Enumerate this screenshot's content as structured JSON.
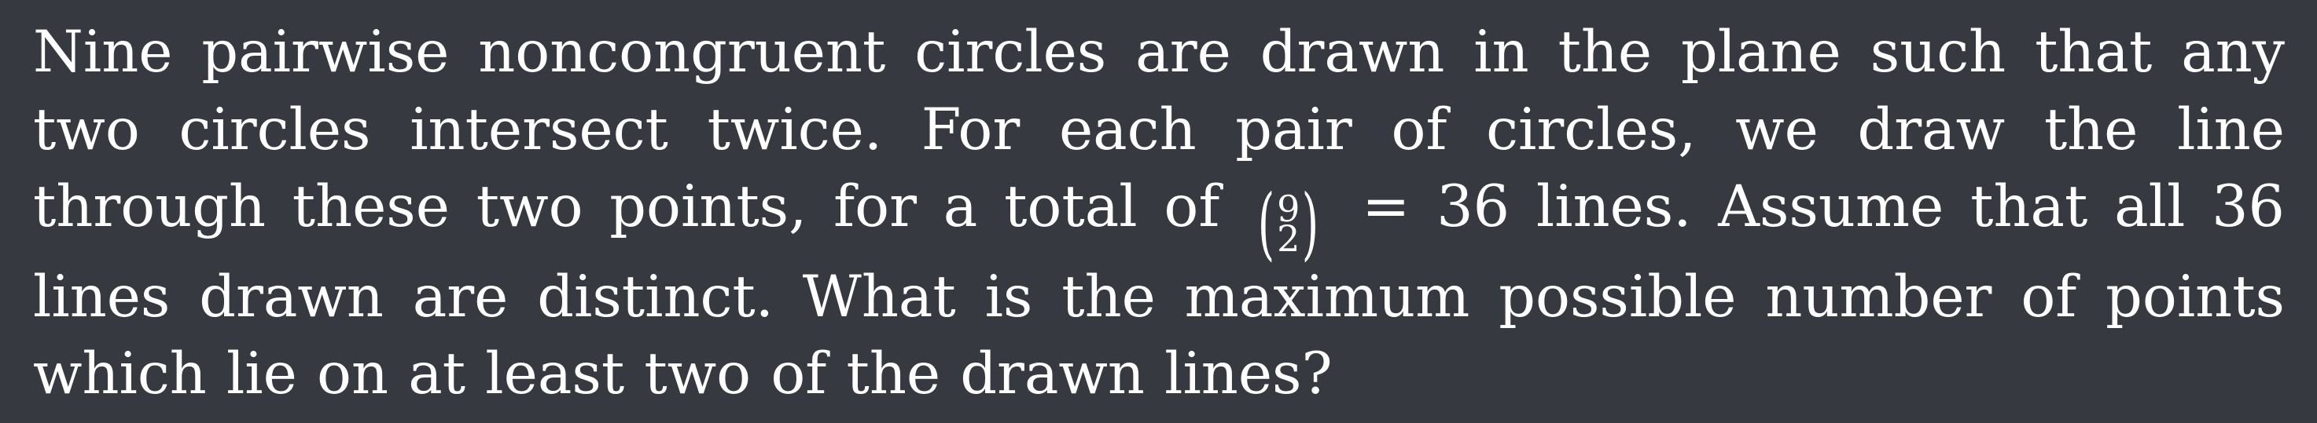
{
  "problem": {
    "text_before_binom": "Nine pairwise noncongruent circles are drawn in the plane such that any two circles intersect twice. For each pair of circles, we draw the line through these two points, for a total of",
    "binom_top": "9",
    "binom_bottom": "2",
    "text_after_binom": "= 36 lines. Assume that all 36 lines drawn are distinct. What is the maximum possible number of points which lie on at least two of the drawn lines?"
  }
}
